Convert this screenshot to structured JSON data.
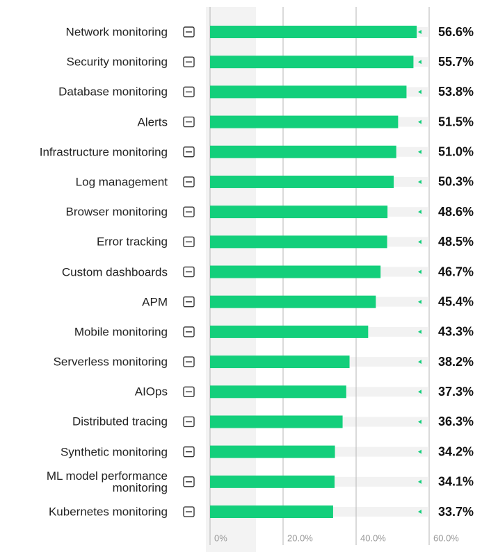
{
  "chart_data": {
    "type": "bar",
    "orientation": "horizontal",
    "categories": [
      "Network monitoring",
      "Security monitoring",
      "Database monitoring",
      "Alerts",
      "Infrastructure monitoring",
      "Log management",
      "Browser monitoring",
      "Error tracking",
      "Custom dashboards",
      "APM",
      "Mobile monitoring",
      "Serverless monitoring",
      "AIOps",
      "Distributed tracing",
      "Synthetic monitoring",
      "ML model performance monitoring",
      "Kubernetes monitoring"
    ],
    "values": [
      56.6,
      55.7,
      53.8,
      51.5,
      51.0,
      50.3,
      48.6,
      48.5,
      46.7,
      45.4,
      43.3,
      38.2,
      37.3,
      36.3,
      34.2,
      34.1,
      33.7
    ],
    "value_labels": [
      "56.6%",
      "55.7%",
      "53.8%",
      "51.5%",
      "51.0%",
      "50.3%",
      "48.6%",
      "48.5%",
      "46.7%",
      "45.4%",
      "43.3%",
      "38.2%",
      "37.3%",
      "36.3%",
      "34.2%",
      "34.1%",
      "33.7%"
    ],
    "color": "#13cf7b",
    "xlim": [
      0,
      60
    ],
    "xticks": [
      {
        "value": 0,
        "label": "0%"
      },
      {
        "value": 20,
        "label": "20.0%"
      },
      {
        "value": 40,
        "label": "40.0%"
      },
      {
        "value": 60,
        "label": "60.0%"
      }
    ],
    "grid": true
  }
}
